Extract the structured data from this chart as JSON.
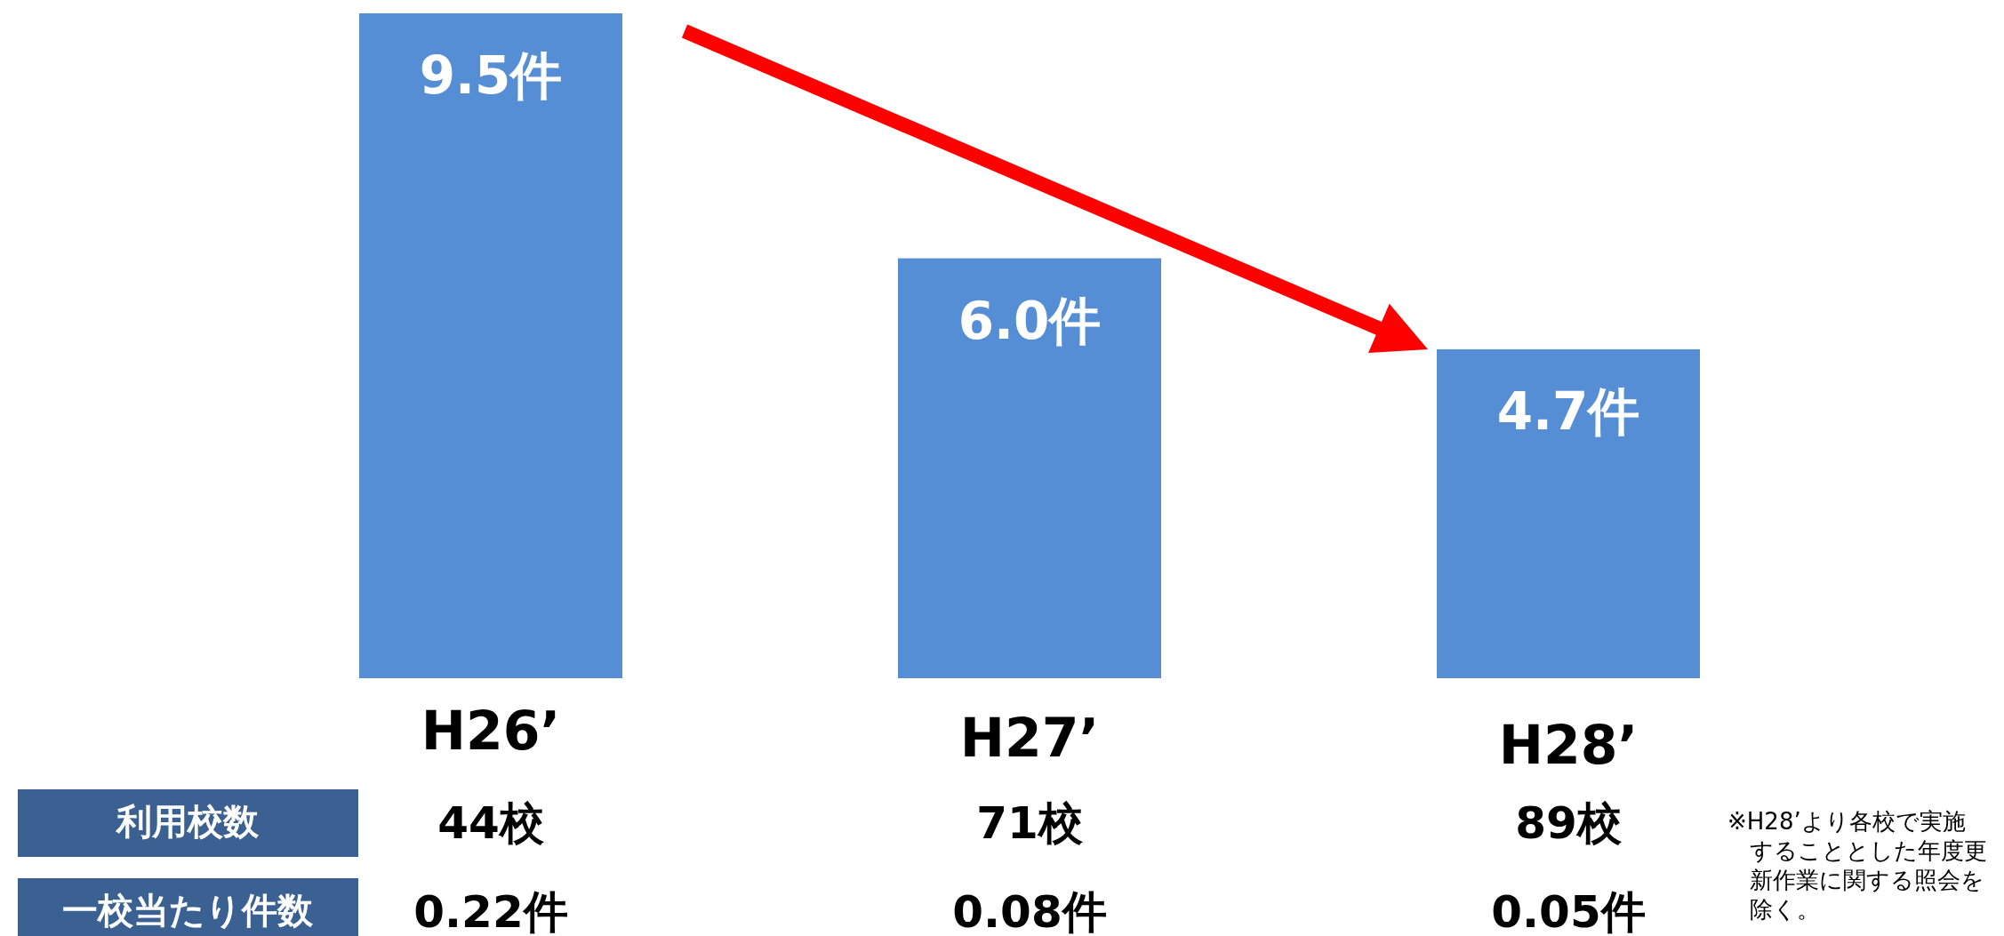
{
  "chart_data": {
    "type": "bar",
    "categories": [
      "H26’",
      "H27’",
      "H28’"
    ],
    "values": [
      9.5,
      6.0,
      4.7
    ],
    "value_labels": [
      "9.5件",
      "6.0件",
      "4.7件"
    ],
    "color": "#558ed5",
    "annotations": [
      "利用校数",
      "44校",
      "71校",
      "89校",
      "一校当たり件数",
      "0.22件",
      "0.08件",
      "0.05件",
      "※H28’より各校で実施することとした年度更新作業に関する照会を除く。"
    ]
  }
}
